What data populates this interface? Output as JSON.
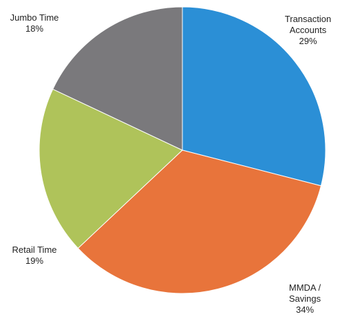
{
  "chart_data": {
    "type": "pie",
    "categories": [
      "Transaction Accounts",
      "MMDA / Savings",
      "Retail Time",
      "Jumbo Time"
    ],
    "values": [
      29,
      34,
      19,
      18
    ],
    "value_labels": [
      "29%",
      "34%",
      "19%",
      "18%"
    ],
    "colors": [
      "#2b8fd6",
      "#e8743b",
      "#afc35a",
      "#7a797c"
    ]
  }
}
